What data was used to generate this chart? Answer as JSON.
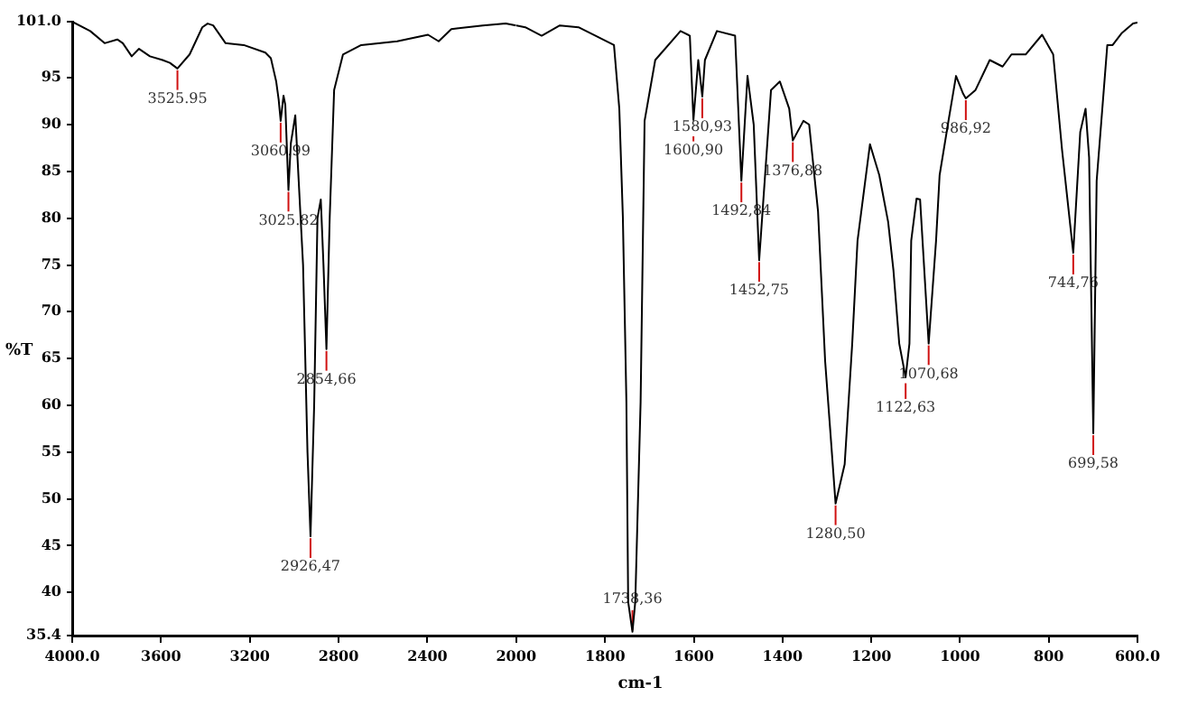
{
  "chart_data": [
    {
      "type": "line",
      "ylabel": "%T",
      "grid": false,
      "marker": "none",
      "legend": false,
      "x": [
        4000,
        3919,
        3854,
        3797,
        3772,
        3732,
        3699,
        3650,
        3593,
        3560,
        3525.95,
        3471,
        3414,
        3390,
        3365,
        3309,
        3227,
        3130,
        3105,
        3081,
        3070,
        3060.9,
        3048,
        3040,
        3025.82,
        3015,
        2995,
        2960,
        2940,
        2926.47,
        2910,
        2895,
        2880,
        2868,
        2854.66,
        2840,
        2820,
        2780,
        2698,
        2536,
        2397,
        2349,
        2292,
        2150,
        2047,
        2000
      ],
      "series": [
        {
          "color": "#000000",
          "values": [
            101.0,
            100.0,
            98.7,
            99.1,
            98.7,
            97.3,
            98.1,
            97.3,
            96.9,
            96.6,
            96.0,
            97.5,
            100.4,
            100.8,
            100.6,
            98.7,
            98.5,
            97.7,
            97.1,
            94.6,
            92.7,
            90.4,
            93.1,
            92.1,
            83.0,
            88.0,
            91.0,
            75.0,
            55.0,
            46.0,
            60.0,
            80.0,
            82.0,
            75.0,
            66.0,
            80.0,
            93.7,
            97.5,
            98.5,
            98.9,
            99.6,
            98.9,
            100.2,
            100.6,
            100.8,
            100.6
          ]
        }
      ],
      "xlim": [
        4000,
        2000
      ],
      "xticks": [
        {
          "value": 4000,
          "label": "4000.0"
        },
        3600,
        3200,
        2800,
        2400,
        2000
      ],
      "ylim": [
        35.4,
        101
      ],
      "yticks": [
        35.4,
        40,
        45,
        50,
        55,
        60,
        65,
        70,
        75,
        80,
        85,
        90,
        95,
        {
          "value": 101,
          "label": "101.0"
        }
      ],
      "annotations": [
        {
          "text": "3525.95",
          "x": 3525.95,
          "y": 96.0
        },
        {
          "text": "3060.99",
          "x": 3060.9,
          "y": 90.4
        },
        {
          "text": "3025.82",
          "x": 3025.82,
          "y": 83.0
        },
        {
          "text": "2926,47",
          "x": 2926.47,
          "y": 46.0
        },
        {
          "text": "2854,66",
          "x": 2854.66,
          "y": 66.0
        }
      ]
    },
    {
      "type": "line",
      "xlabel": "cm-1",
      "grid": false,
      "marker": "none",
      "legend": false,
      "tick_labels": "x",
      "x": [
        2000,
        1980,
        1943,
        1902,
        1860,
        1780,
        1768,
        1760,
        1752,
        1748,
        1738.36,
        1732,
        1720,
        1711,
        1687,
        1630,
        1609,
        1600.9,
        1590,
        1580.93,
        1575,
        1548,
        1507,
        1492.84,
        1479,
        1465,
        1452.75,
        1426,
        1406,
        1385,
        1376.88,
        1353,
        1340,
        1320,
        1304,
        1292,
        1280.5,
        1260,
        1243,
        1231,
        1203,
        1182,
        1162,
        1150,
        1137,
        1122.63,
        1114,
        1110,
        1098,
        1090,
        1070.68,
        1054,
        1046,
        1026,
        1009,
        993,
        986.92,
        965,
        933,
        904,
        884,
        852,
        815,
        790,
        770,
        744.76,
        729,
        717,
        709,
        699.58,
        692,
        668,
        656,
        635,
        610,
        600
      ],
      "series": [
        {
          "color": "#000000",
          "values": [
            100.6,
            100.4,
            99.5,
            100.6,
            100.4,
            98.5,
            91.7,
            80.2,
            60.3,
            39.0,
            35.8,
            39.0,
            60.3,
            90.4,
            96.9,
            100.0,
            99.5,
            90.5,
            96.9,
            93.0,
            96.9,
            100.0,
            99.5,
            84.0,
            95.2,
            90.0,
            75.5,
            93.7,
            94.6,
            91.7,
            88.3,
            90.4,
            90.0,
            80.7,
            64.7,
            57.0,
            49.5,
            53.7,
            66.6,
            77.6,
            87.9,
            84.6,
            79.6,
            74.4,
            66.6,
            63.0,
            66.6,
            77.6,
            82.1,
            82.0,
            66.6,
            77.6,
            84.6,
            90.4,
            95.2,
            93.3,
            92.8,
            93.7,
            96.9,
            96.2,
            97.5,
            97.5,
            99.6,
            97.5,
            87.3,
            76.3,
            89.2,
            91.7,
            86.5,
            57.0,
            84.0,
            98.5,
            98.5,
            99.8,
            100.8,
            100.9
          ]
        }
      ],
      "xlim": [
        2000,
        600
      ],
      "xticks": [
        1800,
        1600,
        1400,
        1200,
        1000,
        800,
        {
          "value": 600,
          "label": "600.0"
        }
      ],
      "ylim": [
        35.4,
        101
      ],
      "annotations": [
        {
          "text": "1738,36",
          "x": 1738.36,
          "y": 35.8
        },
        {
          "text": "1580,93",
          "x": 1580.93,
          "y": 93.0
        },
        {
          "text": "1600,90",
          "x": 1600.9,
          "y": 90.5
        },
        {
          "text": "1492,84",
          "x": 1492.84,
          "y": 84.0
        },
        {
          "text": "1452,75",
          "x": 1452.75,
          "y": 75.5
        },
        {
          "text": "1376,88",
          "x": 1376.88,
          "y": 88.3
        },
        {
          "text": "1280,50",
          "x": 1280.5,
          "y": 49.5
        },
        {
          "text": "1122,63",
          "x": 1122.63,
          "y": 63.0
        },
        {
          "text": "1070,68",
          "x": 1070.68,
          "y": 66.6
        },
        {
          "text": "986,92",
          "x": 986.92,
          "y": 92.8
        },
        {
          "text": "744,76",
          "x": 744.76,
          "y": 76.3
        },
        {
          "text": "699,58",
          "x": 699.58,
          "y": 57.0
        }
      ]
    }
  ]
}
